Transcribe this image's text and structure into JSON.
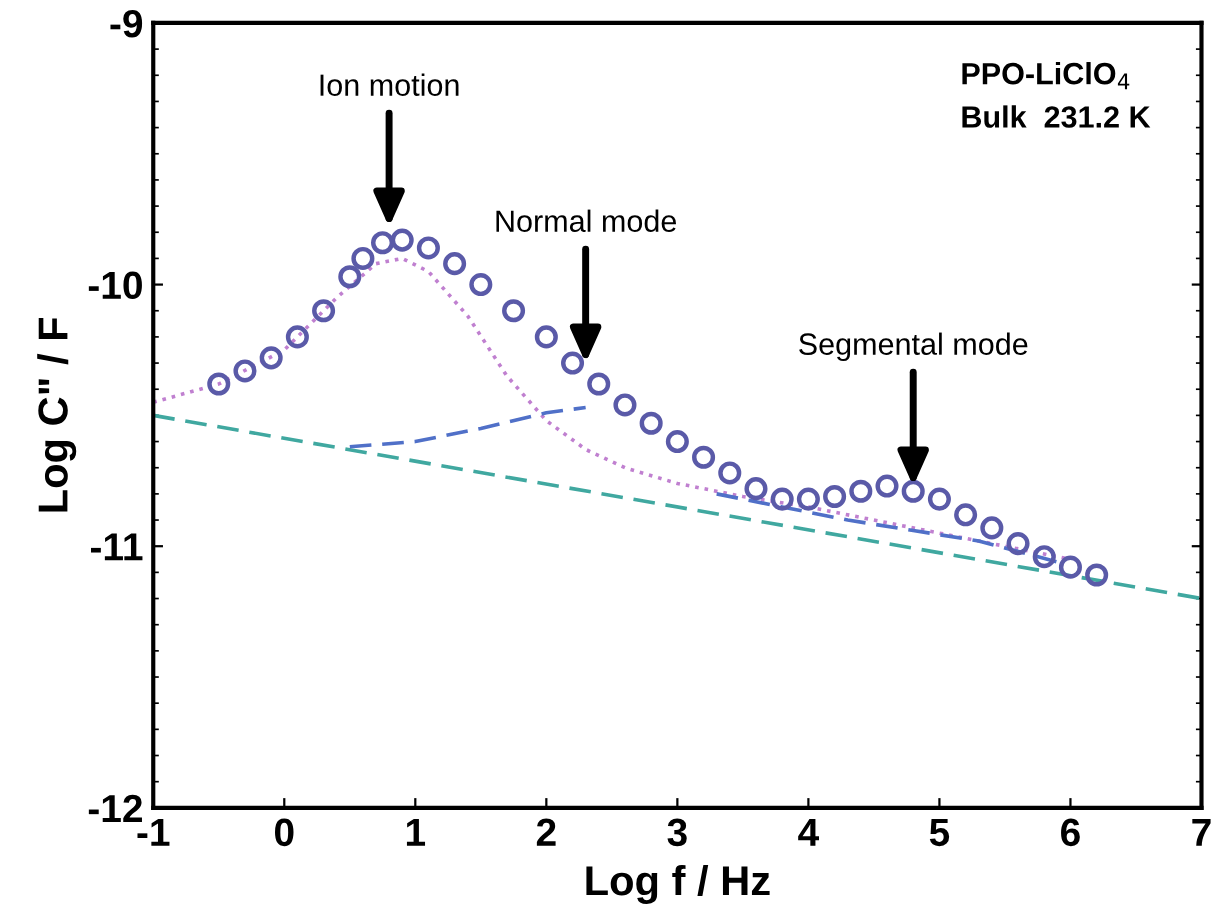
{
  "chart_data": {
    "type": "line",
    "xlabel": "Log f / Hz",
    "ylabel": "Log C\" / F",
    "xlim": [
      -1,
      7
    ],
    "ylim": [
      -12,
      -9
    ],
    "xticks": [
      -1,
      0,
      1,
      2,
      3,
      4,
      5,
      6,
      7
    ],
    "yticks": [
      -12,
      -11,
      -10,
      -9
    ],
    "grid": false,
    "legend": false,
    "series": [
      {
        "line_style": "dashed",
        "marker": "none",
        "color": "#40a8a0",
        "x": [
          -1,
          7
        ],
        "values": [
          -10.5,
          -11.2
        ]
      },
      {
        "line_style": "dotted",
        "marker": "none",
        "color": "#c080d0",
        "x": [
          -1,
          -0.5,
          0,
          0.4,
          0.7,
          0.9,
          1.1,
          1.4,
          1.7,
          2.0,
          2.3,
          2.6,
          3.0,
          3.5,
          4.0,
          4.5,
          5.0,
          5.5,
          6.0
        ],
        "values": [
          -10.45,
          -10.38,
          -10.25,
          -10.05,
          -9.92,
          -9.9,
          -9.95,
          -10.12,
          -10.35,
          -10.52,
          -10.63,
          -10.7,
          -10.76,
          -10.81,
          -10.85,
          -10.9,
          -10.95,
          -11.0,
          -11.05
        ]
      },
      {
        "line_style": "dashed",
        "marker": "none",
        "color": "#5070c8",
        "x": [
          0.5,
          1.0,
          1.5,
          2.0,
          2.3
        ],
        "values": [
          -10.62,
          -10.6,
          -10.55,
          -10.49,
          -10.47
        ]
      },
      {
        "line_style": "dashed",
        "marker": "none",
        "color": "#5070c8",
        "x": [
          3.3,
          3.8,
          4.3,
          4.8,
          5.3,
          5.9
        ],
        "values": [
          -10.8,
          -10.85,
          -10.9,
          -10.94,
          -10.98,
          -11.06
        ]
      },
      {
        "type": "scatter",
        "marker": "circle",
        "color": "#5a5aa8",
        "x": [
          -0.5,
          -0.3,
          -0.1,
          0.1,
          0.3,
          0.5,
          0.6,
          0.75,
          0.9,
          1.1,
          1.3,
          1.5,
          1.75,
          2.0,
          2.2,
          2.4,
          2.6,
          2.8,
          3.0,
          3.2,
          3.4,
          3.6,
          3.8,
          4.0,
          4.2,
          4.4,
          4.6,
          4.8,
          5.0,
          5.2,
          5.4,
          5.6,
          5.8,
          6.0,
          6.2
        ],
        "values": [
          -10.38,
          -10.33,
          -10.28,
          -10.2,
          -10.1,
          -9.97,
          -9.9,
          -9.84,
          -9.83,
          -9.86,
          -9.92,
          -10.0,
          -10.1,
          -10.2,
          -10.3,
          -10.38,
          -10.46,
          -10.53,
          -10.6,
          -10.66,
          -10.72,
          -10.78,
          -10.82,
          -10.82,
          -10.81,
          -10.79,
          -10.77,
          -10.79,
          -10.82,
          -10.88,
          -10.93,
          -10.99,
          -11.04,
          -11.08,
          -11.11
        ]
      }
    ],
    "annotations": [
      {
        "text": "Ion motion",
        "x": 0.8,
        "y": -9.78
      },
      {
        "text": "Normal mode",
        "x": 2.3,
        "y": -10.3
      },
      {
        "text": "Segmental mode",
        "x": 4.8,
        "y": -10.77
      },
      "PPO-LiClO$_{4}$",
      "Bulk  231.2 K"
    ]
  }
}
